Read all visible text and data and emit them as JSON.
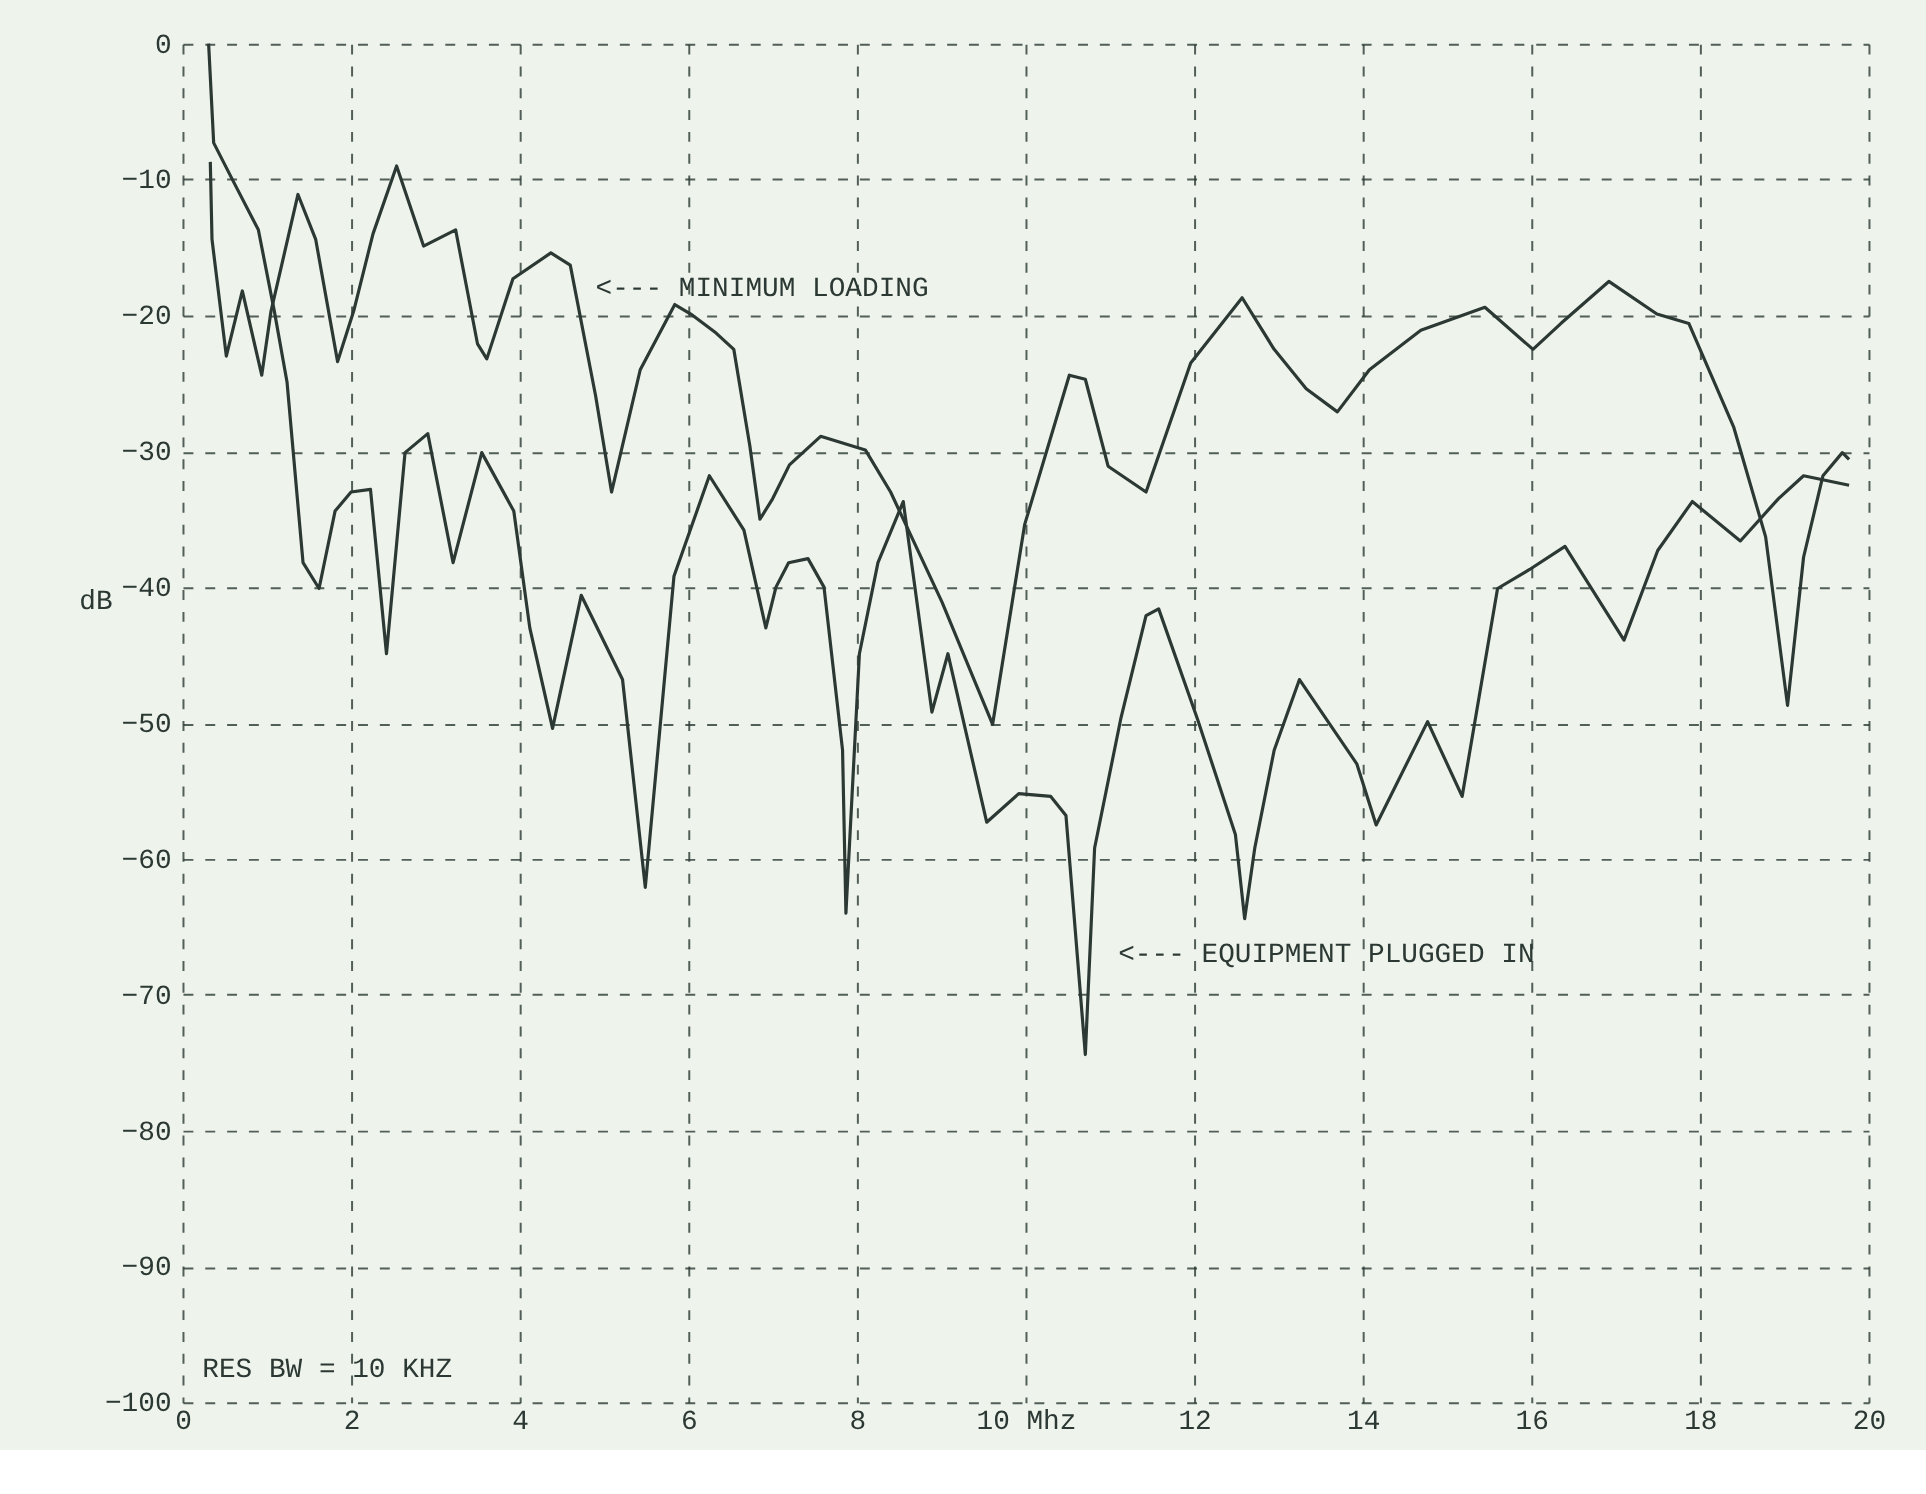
{
  "chart_data": {
    "type": "line",
    "ylabel": "dB",
    "xlim": [
      0,
      20
    ],
    "ylim": [
      -100,
      0
    ],
    "xticks": [
      0,
      2,
      4,
      6,
      8,
      {
        "value": 10,
        "label": "10 Mhz"
      },
      12,
      14,
      16,
      18,
      20
    ],
    "yticks": [
      0,
      -10,
      -20,
      -30,
      -40,
      -50,
      -60,
      -70,
      -80,
      -90,
      -100
    ],
    "grid": true,
    "line_style": "solid",
    "marker": "none",
    "series": [
      {
        "color": "#2b3833",
        "x": [
          0.33,
          0.35,
          0.52,
          0.71,
          0.94,
          1.05,
          1.37,
          1.58,
          1.84,
          2.03,
          2.26,
          2.54,
          2.86,
          3.24,
          3.5,
          3.61,
          3.92,
          4.37,
          4.6,
          4.9,
          5.09,
          5.43,
          5.84,
          6.03,
          6.33,
          6.54,
          6.73,
          6.85,
          7.0,
          7.2,
          7.57,
          8.1,
          8.4,
          9.01,
          9.39,
          9.61,
          9.99,
          10.52,
          10.71,
          10.98,
          11.43,
          11.96,
          12.57,
          12.95,
          13.33,
          13.7,
          14.08,
          14.69,
          15.45,
          16.02,
          16.35,
          16.92,
          17.49,
          17.87,
          18.4,
          18.78,
          19.04,
          19.23,
          19.46,
          19.69,
          19.77
        ],
        "values": [
          -8.7,
          -14.4,
          -23,
          -18.2,
          -24.4,
          -19.7,
          -11.1,
          -14.4,
          -23.4,
          -19.7,
          -14,
          -9,
          -14.9,
          -13.7,
          -22.1,
          -23.2,
          -17.3,
          -15.4,
          -16.3,
          -25.9,
          -33,
          -24,
          -19.2,
          -19.9,
          -21.3,
          -22.5,
          -29.6,
          -35,
          -33.5,
          -31,
          -28.9,
          -29.9,
          -33,
          -41.1,
          -46.8,
          -50.1,
          -35.4,
          -24.4,
          -24.7,
          -31.1,
          -33,
          -23.5,
          -18.7,
          -22.5,
          -25.4,
          -27.1,
          -24,
          -21.1,
          -19.4,
          -22.5,
          -20.6,
          -17.5,
          -19.9,
          -20.6,
          -28.2,
          -36.3,
          -48.7,
          -37.8,
          -31.8,
          -30.1,
          -30.6
        ]
      },
      {
        "color": "#2b3833",
        "x": [
          0.31,
          0.37,
          0.6,
          0.9,
          1.09,
          1.24,
          1.43,
          1.62,
          1.81,
          2.0,
          2.23,
          2.42,
          2.64,
          2.91,
          3.21,
          3.55,
          3.93,
          4.12,
          4.39,
          4.73,
          5.22,
          5.49,
          5.83,
          6.25,
          6.66,
          6.92,
          7.04,
          7.19,
          7.42,
          7.61,
          7.83,
          7.87,
          8.03,
          8.25,
          8.55,
          8.89,
          9.08,
          9.54,
          9.92,
          10.3,
          10.48,
          10.71,
          10.82,
          11.13,
          11.43,
          11.58,
          12.04,
          12.49,
          12.6,
          12.72,
          12.95,
          13.25,
          13.93,
          14.16,
          14.77,
          15.18,
          15.6,
          15.98,
          16.4,
          17.1,
          17.5,
          17.91,
          18.48,
          18.93,
          19.23,
          19.77
        ],
        "values": [
          0,
          -7.3,
          -10.1,
          -13.7,
          -19.7,
          -24.9,
          -38.2,
          -40.1,
          -34.4,
          -33,
          -32.8,
          -44.9,
          -30.1,
          -28.7,
          -38.2,
          -30.1,
          -34.4,
          -43,
          -50.4,
          -40.6,
          -46.8,
          -62.1,
          -39.2,
          -31.8,
          -35.8,
          -43,
          -40,
          -38.2,
          -37.9,
          -40,
          -52,
          -64,
          -44.9,
          -38.2,
          -33.7,
          -49.2,
          -44.9,
          -57.3,
          -55.2,
          -55.4,
          -56.8,
          -74.4,
          -59.2,
          -49.7,
          -42.1,
          -41.6,
          -49.7,
          -58.2,
          -64.4,
          -59.2,
          -52,
          -46.8,
          -53,
          -57.5,
          -49.9,
          -55.4,
          -40.1,
          -38.7,
          -37,
          -43.9,
          -37.3,
          -33.7,
          -36.6,
          -33.5,
          -31.8,
          -32.5
        ]
      }
    ],
    "annotations": [
      "<--- MINIMUM LOADING",
      "<--- EQUIPMENT PLUGGED IN",
      "RES BW = 10 KHZ"
    ]
  }
}
